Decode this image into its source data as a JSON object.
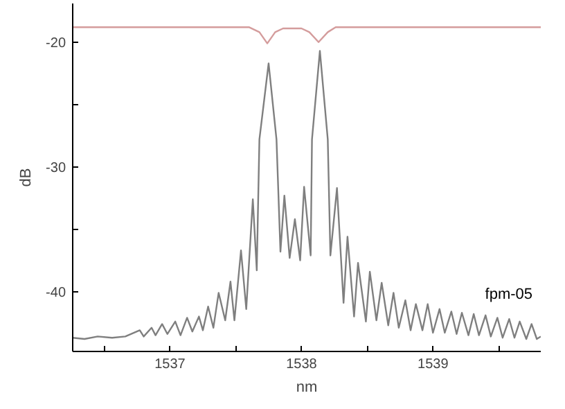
{
  "chart_data": {
    "type": "line",
    "xlabel": "nm",
    "ylabel": "dB",
    "xlim": [
      1536.26,
      1539.82
    ],
    "ylim": [
      -44.8,
      -16.9
    ],
    "xticks": [
      {
        "value": 1536.5,
        "label": null
      },
      1537,
      {
        "value": 1537.5,
        "label": null
      },
      1538,
      {
        "value": 1538.5,
        "label": null
      },
      1539,
      {
        "value": 1539.5,
        "label": null
      }
    ],
    "yticks": [
      -40,
      {
        "value": -35,
        "label": null
      },
      -30,
      {
        "value": -25,
        "label": null
      },
      -20
    ],
    "grid": false,
    "marker": "none",
    "line_style": "solid",
    "series": [
      {
        "color": "#d49c9c",
        "x": [
          1536.26,
          1537.6,
          1537.68,
          1537.74,
          1537.8,
          1537.86,
          1538.0,
          1538.06,
          1538.13,
          1538.2,
          1538.26,
          1539.82
        ],
        "values": [
          -18.8,
          -18.8,
          -19.2,
          -20.1,
          -19.2,
          -18.9,
          -18.9,
          -19.2,
          -20.0,
          -19.2,
          -18.8,
          -18.8
        ]
      },
      {
        "name": "fpm-05",
        "color": "#7f7f7f",
        "x": [
          1536.26,
          1536.35,
          1536.45,
          1536.56,
          1536.66,
          1536.77,
          1536.8,
          1536.86,
          1536.89,
          1536.94,
          1536.98,
          1537.04,
          1537.08,
          1537.13,
          1537.17,
          1537.22,
          1537.25,
          1537.29,
          1537.33,
          1537.37,
          1537.42,
          1537.46,
          1537.49,
          1537.54,
          1537.58,
          1537.63,
          1537.66,
          1537.68,
          1537.75,
          1537.81,
          1537.84,
          1537.87,
          1537.91,
          1537.95,
          1537.99,
          1538.02,
          1538.07,
          1538.08,
          1538.14,
          1538.2,
          1538.22,
          1538.27,
          1538.32,
          1538.35,
          1538.4,
          1538.43,
          1538.49,
          1538.52,
          1538.57,
          1538.61,
          1538.66,
          1538.7,
          1538.74,
          1538.79,
          1538.83,
          1538.87,
          1538.92,
          1538.96,
          1539.0,
          1539.05,
          1539.09,
          1539.14,
          1539.18,
          1539.22,
          1539.27,
          1539.31,
          1539.35,
          1539.4,
          1539.44,
          1539.49,
          1539.53,
          1539.58,
          1539.62,
          1539.66,
          1539.71,
          1539.75,
          1539.79,
          1539.82
        ],
        "values": [
          -43.7,
          -43.8,
          -43.6,
          -43.7,
          -43.6,
          -43.1,
          -43.6,
          -42.9,
          -43.5,
          -42.6,
          -43.4,
          -42.4,
          -43.5,
          -42.1,
          -43.2,
          -42.0,
          -43.1,
          -41.2,
          -42.9,
          -40.1,
          -42.3,
          -39.2,
          -42.3,
          -36.7,
          -41.4,
          -32.6,
          -38.3,
          -27.8,
          -21.7,
          -27.8,
          -36.8,
          -32.3,
          -37.3,
          -34.2,
          -37.5,
          -31.6,
          -37.1,
          -27.8,
          -20.7,
          -27.8,
          -37.1,
          -31.7,
          -40.9,
          -35.6,
          -42.0,
          -37.7,
          -42.4,
          -38.4,
          -42.3,
          -39.3,
          -42.7,
          -40.1,
          -42.9,
          -40.7,
          -43.1,
          -41.0,
          -43.1,
          -41.0,
          -43.3,
          -41.4,
          -43.3,
          -41.6,
          -43.4,
          -41.7,
          -43.5,
          -41.8,
          -43.5,
          -41.9,
          -43.6,
          -42.1,
          -43.7,
          -42.2,
          -43.7,
          -42.4,
          -43.8,
          -42.6,
          -43.8,
          -43.6
        ]
      }
    ]
  }
}
